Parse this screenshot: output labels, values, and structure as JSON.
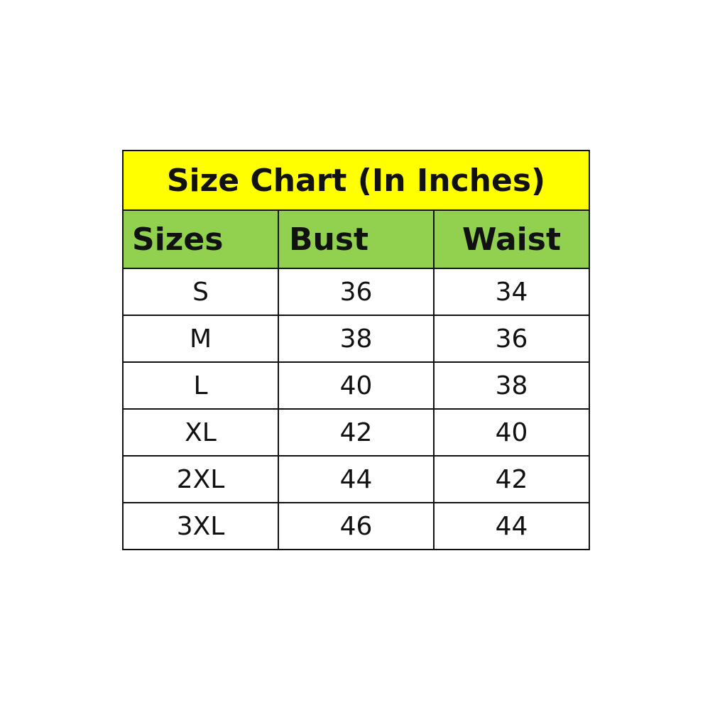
{
  "title": "Size Chart (In Inches)",
  "columns": [
    "Sizes",
    "Bust",
    "Waist"
  ],
  "rows": [
    [
      "S",
      "36",
      "34"
    ],
    [
      "M",
      "38",
      "36"
    ],
    [
      "L",
      "40",
      "38"
    ],
    [
      "XL",
      "42",
      "40"
    ],
    [
      "2XL",
      "44",
      "42"
    ],
    [
      "3XL",
      "46",
      "44"
    ]
  ],
  "colors": {
    "title_bg": "#ffff00",
    "header_bg": "#92d050"
  }
}
